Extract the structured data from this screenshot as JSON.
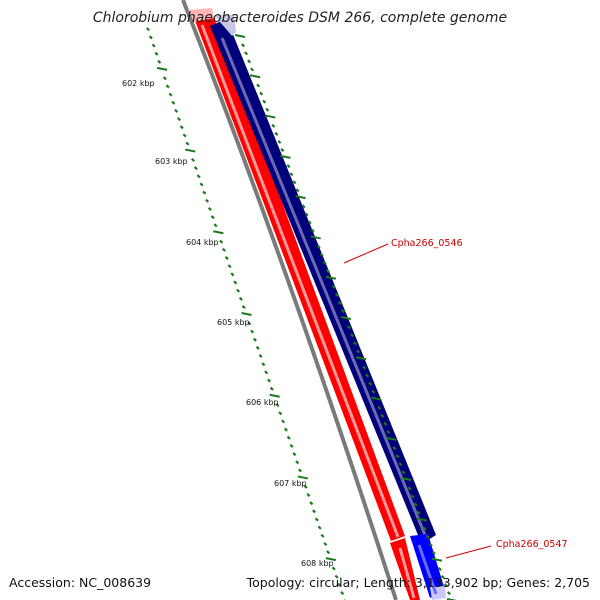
{
  "title": "Chlorobium phaeobacteroides DSM 266, complete genome",
  "footer": {
    "accession": "Accession: NC_008639",
    "summary": "Topology: circular; Length: 3,133,902 bp; Genes: 2,705"
  },
  "ticks": [
    {
      "label": "602 kbp"
    },
    {
      "label": "603 kbp"
    },
    {
      "label": "604 kbp"
    },
    {
      "label": "605 kbp"
    },
    {
      "label": "606 kbp"
    },
    {
      "label": "607 kbp"
    },
    {
      "label": "608 kbp"
    }
  ],
  "genes": [
    {
      "label": "Cpha266_0546"
    },
    {
      "label": "Cpha266_0547"
    }
  ],
  "colors": {
    "backbone": "#808080",
    "forward_cds": "#ff0000",
    "reverse_cds": "#00007a",
    "highlight_cds": "#0000ff",
    "cds_pale": "#c8c8e6",
    "tick": "#1a7a1a",
    "gene_label": "#cc0000"
  }
}
